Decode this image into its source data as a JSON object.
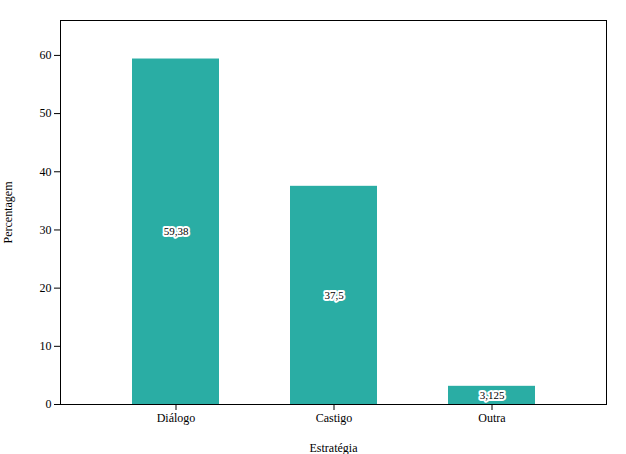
{
  "chart_data": {
    "type": "bar",
    "categories": [
      "Diálogo",
      "Castigo",
      "Outra"
    ],
    "values": [
      59.38,
      37.5,
      3.125
    ],
    "value_labels": [
      "59,38",
      "37,5",
      "3,125"
    ],
    "data_labels": true,
    "color": "#2aada4",
    "xlabel": "Estratégia",
    "ylabel": "Percentagem",
    "ylim": [
      0,
      66
    ],
    "yticks": [
      0,
      10,
      20,
      30,
      40,
      50,
      60
    ],
    "grid": false
  }
}
